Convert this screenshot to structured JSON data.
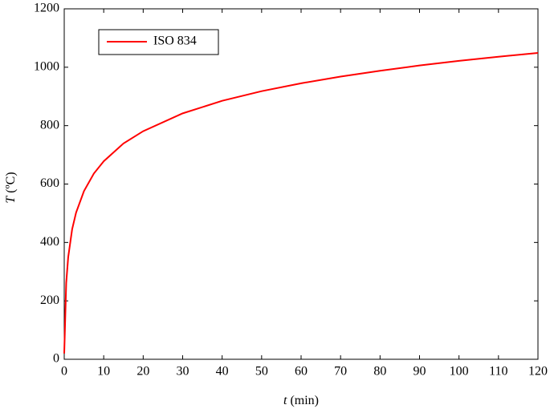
{
  "chart_data": {
    "type": "line",
    "xlabel_var": "t",
    "xlabel_unit": "(min)",
    "ylabel_var": "T",
    "ylabel_unit": "(ºC)",
    "x": [
      0,
      0.5,
      1,
      2,
      3,
      5,
      7.5,
      10,
      15,
      20,
      30,
      40,
      50,
      60,
      70,
      80,
      90,
      100,
      110,
      120
    ],
    "series": [
      {
        "name": "ISO 834",
        "color": "#ff0000",
        "values": [
          20,
          261,
          349,
          445,
          502,
          576,
          636,
          678,
          739,
          781,
          842,
          885,
          918,
          945,
          968,
          988,
          1006,
          1022,
          1036,
          1049
        ]
      }
    ],
    "xlim": [
      0,
      120
    ],
    "xticks": [
      0,
      10,
      20,
      30,
      40,
      50,
      60,
      70,
      80,
      90,
      100,
      110,
      120
    ],
    "ylim": [
      0,
      1200
    ],
    "yticks": [
      0,
      200,
      400,
      600,
      800,
      1000,
      1200
    ],
    "grid": false,
    "legend": "upper left"
  }
}
